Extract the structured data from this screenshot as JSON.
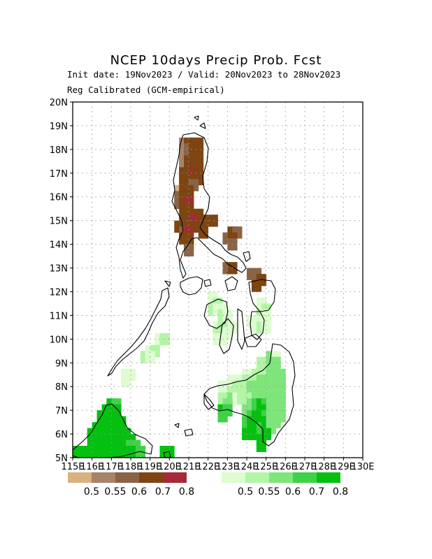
{
  "header": {
    "title": "NCEP 10days Precip Prob. Fcst",
    "subtitle": "Init date: 19Nov2023 / Valid: 20Nov2023 to 28Nov2023",
    "method": "Reg Calibrated (GCM-empirical)"
  },
  "map": {
    "lon_range": [
      115,
      130
    ],
    "lat_range": [
      5,
      20
    ],
    "grid": true,
    "cell_size_deg": 0.5,
    "lat_labels": [
      "5N",
      "6N",
      "7N",
      "8N",
      "9N",
      "10N",
      "11N",
      "12N",
      "13N",
      "14N",
      "15N",
      "16N",
      "17N",
      "18N",
      "19N",
      "20N"
    ],
    "lon_labels": [
      "115E",
      "116E",
      "117E",
      "118E",
      "119E",
      "120E",
      "121E",
      "122E",
      "123E",
      "124E",
      "125E",
      "126E",
      "127E",
      "128E",
      "129E",
      "130E"
    ]
  },
  "colors": {
    "dry": [
      "#d8b27e",
      "#a6836a",
      "#8a6446",
      "#7e4512",
      "#a42a35"
    ],
    "wet": [
      "#ddfcd0",
      "#b3f5a6",
      "#7ee57a",
      "#3fd148",
      "#05c010"
    ]
  },
  "legend": {
    "dry_labels": [
      "0.5",
      "0.55",
      "0.6",
      "0.7",
      "0.8"
    ],
    "wet_labels": [
      "0.5",
      "0.55",
      "0.6",
      "0.7",
      "0.8"
    ]
  },
  "cells": {
    "dry": [
      [
        120.75,
        18.25,
        1
      ],
      [
        121.0,
        18.25,
        3
      ],
      [
        121.25,
        18.25,
        3
      ],
      [
        121.5,
        18.25,
        3
      ],
      [
        120.75,
        18.0,
        1
      ],
      [
        121.0,
        18.0,
        2
      ],
      [
        121.25,
        18.0,
        3
      ],
      [
        121.5,
        18.0,
        3
      ],
      [
        120.75,
        17.75,
        1
      ],
      [
        121.0,
        17.75,
        2
      ],
      [
        121.25,
        17.75,
        3
      ],
      [
        120.75,
        17.5,
        1
      ],
      [
        121.0,
        17.5,
        3
      ],
      [
        121.25,
        17.5,
        3
      ],
      [
        121.5,
        17.5,
        3
      ],
      [
        120.75,
        17.25,
        1
      ],
      [
        121.0,
        17.25,
        3
      ],
      [
        121.25,
        17.25,
        3
      ],
      [
        121.5,
        17.25,
        3
      ],
      [
        120.75,
        17.0,
        3
      ],
      [
        121.0,
        17.0,
        3
      ],
      [
        121.25,
        17.0,
        4
      ],
      [
        121.5,
        17.0,
        3
      ],
      [
        120.75,
        16.75,
        3
      ],
      [
        121.0,
        16.75,
        3
      ],
      [
        121.25,
        16.75,
        3
      ],
      [
        121.5,
        16.75,
        3
      ],
      [
        120.75,
        16.5,
        3
      ],
      [
        121.0,
        16.5,
        3
      ],
      [
        121.25,
        16.5,
        2
      ],
      [
        120.5,
        16.25,
        0
      ],
      [
        120.75,
        16.25,
        3
      ],
      [
        121.0,
        16.25,
        3
      ],
      [
        120.5,
        16.0,
        2
      ],
      [
        120.75,
        16.0,
        3
      ],
      [
        121.0,
        16.0,
        3
      ],
      [
        120.5,
        15.75,
        2
      ],
      [
        120.75,
        15.75,
        3
      ],
      [
        121.0,
        15.75,
        4
      ],
      [
        120.75,
        15.5,
        3
      ],
      [
        121.0,
        15.5,
        3
      ],
      [
        121.5,
        15.25,
        3
      ],
      [
        120.75,
        15.0,
        3
      ],
      [
        121.0,
        15.0,
        3
      ],
      [
        121.25,
        15.0,
        4
      ],
      [
        121.75,
        15.0,
        3
      ],
      [
        122.25,
        15.0,
        3
      ],
      [
        120.5,
        14.75,
        3
      ],
      [
        121.0,
        14.75,
        3
      ],
      [
        121.25,
        14.75,
        3
      ],
      [
        120.75,
        14.5,
        2
      ],
      [
        121.0,
        14.5,
        4
      ],
      [
        121.75,
        14.5,
        3
      ],
      [
        123.25,
        14.5,
        3
      ],
      [
        123.5,
        14.5,
        2
      ],
      [
        120.75,
        14.25,
        3
      ],
      [
        121.0,
        14.25,
        3
      ],
      [
        123.0,
        14.25,
        2
      ],
      [
        123.25,
        14.25,
        3
      ],
      [
        121.0,
        14.0,
        3
      ],
      [
        123.25,
        14.0,
        2
      ],
      [
        121.0,
        13.75,
        2
      ],
      [
        123.0,
        13.0,
        2
      ],
      [
        123.25,
        13.0,
        3
      ],
      [
        124.25,
        12.75,
        2
      ],
      [
        124.5,
        12.75,
        2
      ],
      [
        124.5,
        12.5,
        2
      ],
      [
        124.75,
        12.5,
        3
      ],
      [
        124.5,
        12.25,
        3
      ]
    ],
    "wet": [
      [
        122.25,
        11.75,
        0
      ],
      [
        122.25,
        11.5,
        0
      ],
      [
        122.5,
        11.5,
        1
      ],
      [
        122.25,
        11.25,
        1
      ],
      [
        122.5,
        11.25,
        0
      ],
      [
        122.75,
        11.25,
        0
      ],
      [
        122.75,
        11.0,
        1
      ],
      [
        123.0,
        11.0,
        0
      ],
      [
        122.75,
        10.75,
        1
      ],
      [
        123.0,
        10.75,
        0
      ],
      [
        122.5,
        10.5,
        0
      ],
      [
        122.75,
        10.5,
        1
      ],
      [
        123.0,
        10.5,
        1
      ],
      [
        123.25,
        10.5,
        0
      ],
      [
        122.5,
        10.25,
        1
      ],
      [
        122.75,
        10.25,
        1
      ],
      [
        123.0,
        10.25,
        0
      ],
      [
        122.5,
        10.0,
        0
      ],
      [
        122.75,
        10.0,
        0
      ],
      [
        124.75,
        11.5,
        0
      ],
      [
        124.75,
        11.25,
        0
      ],
      [
        125.0,
        11.25,
        1
      ],
      [
        124.75,
        11.0,
        1
      ],
      [
        125.0,
        11.0,
        0
      ],
      [
        124.25,
        10.75,
        0
      ],
      [
        124.75,
        10.75,
        0
      ],
      [
        124.5,
        10.5,
        0
      ],
      [
        124.75,
        10.5,
        1
      ],
      [
        125.0,
        10.5,
        0
      ],
      [
        119.5,
        10.0,
        0
      ],
      [
        119.75,
        10.0,
        1
      ],
      [
        119.0,
        9.5,
        0
      ],
      [
        119.25,
        9.5,
        1
      ],
      [
        118.75,
        9.25,
        1
      ],
      [
        119.0,
        9.25,
        0
      ],
      [
        125.25,
        9.25,
        2
      ],
      [
        125.5,
        9.25,
        0
      ],
      [
        124.75,
        9.0,
        1
      ],
      [
        125.0,
        9.0,
        1
      ],
      [
        125.25,
        9.0,
        2
      ],
      [
        125.5,
        9.0,
        2
      ],
      [
        124.0,
        8.5,
        0
      ],
      [
        124.25,
        8.5,
        0
      ],
      [
        124.5,
        8.5,
        1
      ],
      [
        124.75,
        8.5,
        1
      ],
      [
        125.0,
        8.5,
        1
      ],
      [
        125.25,
        8.5,
        2
      ],
      [
        125.5,
        8.5,
        2
      ],
      [
        125.75,
        8.5,
        2
      ],
      [
        123.25,
        8.25,
        0
      ],
      [
        123.5,
        8.25,
        0
      ],
      [
        123.75,
        8.25,
        0
      ],
      [
        124.0,
        8.25,
        1
      ],
      [
        124.25,
        8.25,
        1
      ],
      [
        124.5,
        8.25,
        1
      ],
      [
        124.75,
        8.25,
        2
      ],
      [
        125.0,
        8.25,
        2
      ],
      [
        125.25,
        8.25,
        2
      ],
      [
        125.5,
        8.25,
        2
      ],
      [
        125.75,
        8.25,
        2
      ],
      [
        122.75,
        8.0,
        0
      ],
      [
        123.0,
        8.0,
        0
      ],
      [
        123.25,
        8.0,
        0
      ],
      [
        123.5,
        8.0,
        1
      ],
      [
        123.75,
        8.0,
        1
      ],
      [
        124.0,
        8.0,
        1
      ],
      [
        124.25,
        8.0,
        2
      ],
      [
        124.5,
        8.0,
        2
      ],
      [
        124.75,
        8.0,
        2
      ],
      [
        125.0,
        8.0,
        2
      ],
      [
        125.25,
        8.0,
        2
      ],
      [
        125.5,
        8.0,
        2
      ],
      [
        125.75,
        8.0,
        2
      ],
      [
        122.75,
        7.75,
        0
      ],
      [
        123.0,
        7.75,
        0
      ],
      [
        123.25,
        7.75,
        1
      ],
      [
        123.5,
        7.75,
        1
      ],
      [
        123.75,
        7.75,
        1
      ],
      [
        124.0,
        7.75,
        1
      ],
      [
        124.25,
        7.75,
        2
      ],
      [
        124.5,
        7.75,
        2
      ],
      [
        124.75,
        7.75,
        2
      ],
      [
        125.0,
        7.75,
        2
      ],
      [
        125.25,
        7.75,
        2
      ],
      [
        125.5,
        7.75,
        2
      ],
      [
        125.75,
        7.75,
        2
      ],
      [
        122.75,
        7.5,
        1
      ],
      [
        123.0,
        7.5,
        1
      ],
      [
        123.25,
        7.5,
        2
      ],
      [
        123.5,
        7.5,
        0
      ],
      [
        123.75,
        7.5,
        1
      ],
      [
        124.25,
        7.5,
        1
      ],
      [
        124.5,
        7.5,
        2
      ],
      [
        124.75,
        7.5,
        2
      ],
      [
        125.0,
        7.5,
        2
      ],
      [
        125.25,
        7.5,
        2
      ],
      [
        125.5,
        7.5,
        2
      ],
      [
        125.75,
        7.5,
        2
      ],
      [
        122.75,
        7.25,
        1
      ],
      [
        123.0,
        7.25,
        2
      ],
      [
        124.25,
        7.25,
        2
      ],
      [
        124.5,
        7.25,
        3
      ],
      [
        124.75,
        7.25,
        4
      ],
      [
        125.0,
        7.25,
        3
      ],
      [
        125.25,
        7.25,
        2
      ],
      [
        125.5,
        7.25,
        2
      ],
      [
        125.75,
        7.25,
        2
      ],
      [
        122.75,
        7.0,
        4
      ],
      [
        123.0,
        7.0,
        3
      ],
      [
        124.0,
        7.0,
        2
      ],
      [
        124.25,
        7.0,
        2
      ],
      [
        124.5,
        7.0,
        3
      ],
      [
        124.75,
        7.0,
        4
      ],
      [
        125.0,
        7.0,
        4
      ],
      [
        125.25,
        7.0,
        2
      ],
      [
        125.5,
        7.0,
        2
      ],
      [
        125.75,
        7.0,
        2
      ],
      [
        122.75,
        6.75,
        3
      ],
      [
        124.0,
        6.75,
        2
      ],
      [
        124.25,
        6.75,
        3
      ],
      [
        124.5,
        6.75,
        4
      ],
      [
        124.75,
        6.75,
        4
      ],
      [
        125.0,
        6.75,
        3
      ],
      [
        125.25,
        6.75,
        2
      ],
      [
        125.5,
        6.75,
        2
      ],
      [
        125.75,
        6.75,
        2
      ],
      [
        124.0,
        6.5,
        3
      ],
      [
        124.25,
        6.5,
        4
      ],
      [
        124.5,
        6.5,
        4
      ],
      [
        124.75,
        6.5,
        4
      ],
      [
        125.0,
        6.5,
        4
      ],
      [
        125.25,
        6.5,
        2
      ],
      [
        125.5,
        6.5,
        2
      ],
      [
        124.0,
        6.25,
        3
      ],
      [
        124.25,
        6.25,
        4
      ],
      [
        124.5,
        6.25,
        4
      ],
      [
        124.75,
        6.25,
        3
      ],
      [
        125.0,
        6.25,
        4
      ],
      [
        125.25,
        6.25,
        2
      ],
      [
        124.0,
        6.0,
        4
      ],
      [
        124.25,
        6.0,
        4
      ],
      [
        124.75,
        6.0,
        3
      ],
      [
        125.0,
        6.0,
        4
      ],
      [
        124.75,
        5.75,
        4
      ],
      [
        124.75,
        5.5,
        4
      ],
      [
        117.75,
        8.5,
        0
      ],
      [
        118.0,
        8.5,
        0
      ],
      [
        117.75,
        8.25,
        0
      ],
      [
        117.0,
        7.25,
        4
      ],
      [
        117.25,
        7.25,
        3
      ],
      [
        116.75,
        7.0,
        4
      ],
      [
        117.0,
        7.0,
        4
      ],
      [
        117.25,
        7.0,
        4
      ],
      [
        116.5,
        6.75,
        4
      ],
      [
        116.75,
        6.75,
        4
      ],
      [
        117.0,
        6.75,
        4
      ],
      [
        117.25,
        6.75,
        4
      ],
      [
        116.5,
        6.5,
        4
      ],
      [
        116.75,
        6.5,
        4
      ],
      [
        117.0,
        6.5,
        4
      ],
      [
        117.25,
        6.5,
        4
      ],
      [
        117.5,
        6.5,
        4
      ],
      [
        116.25,
        6.25,
        4
      ],
      [
        116.5,
        6.25,
        4
      ],
      [
        116.75,
        6.25,
        4
      ],
      [
        117.0,
        6.25,
        4
      ],
      [
        117.25,
        6.25,
        4
      ],
      [
        117.5,
        6.25,
        4
      ],
      [
        116.0,
        6.0,
        4
      ],
      [
        116.25,
        6.0,
        4
      ],
      [
        116.5,
        6.0,
        4
      ],
      [
        116.75,
        6.0,
        4
      ],
      [
        117.0,
        6.0,
        4
      ],
      [
        117.25,
        6.0,
        4
      ],
      [
        117.5,
        6.0,
        4
      ],
      [
        117.75,
        6.0,
        4
      ],
      [
        116.0,
        5.75,
        4
      ],
      [
        116.25,
        5.75,
        4
      ],
      [
        116.5,
        5.75,
        4
      ],
      [
        116.75,
        5.75,
        4
      ],
      [
        117.0,
        5.75,
        4
      ],
      [
        117.25,
        5.75,
        4
      ],
      [
        117.5,
        5.75,
        4
      ],
      [
        117.75,
        5.75,
        4
      ],
      [
        118.0,
        5.75,
        4
      ],
      [
        116.25,
        5.5,
        4
      ],
      [
        116.5,
        5.5,
        4
      ],
      [
        116.75,
        5.5,
        4
      ],
      [
        117.0,
        5.5,
        4
      ],
      [
        117.25,
        5.5,
        4
      ],
      [
        117.5,
        5.5,
        4
      ],
      [
        117.75,
        5.5,
        4
      ],
      [
        118.0,
        5.5,
        3
      ],
      [
        118.25,
        5.5,
        3
      ],
      [
        115.25,
        5.25,
        4
      ],
      [
        115.75,
        5.25,
        4
      ],
      [
        116.0,
        5.25,
        4
      ],
      [
        116.25,
        5.25,
        4
      ],
      [
        116.5,
        5.25,
        4
      ],
      [
        116.75,
        5.25,
        4
      ],
      [
        117.0,
        5.25,
        4
      ],
      [
        117.25,
        5.25,
        4
      ],
      [
        117.5,
        5.25,
        4
      ],
      [
        117.75,
        5.25,
        4
      ],
      [
        118.0,
        5.25,
        4
      ],
      [
        118.25,
        5.25,
        4
      ],
      [
        118.5,
        5.25,
        3
      ],
      [
        119.75,
        5.25,
        4
      ],
      [
        120.0,
        5.25,
        4
      ]
    ]
  }
}
